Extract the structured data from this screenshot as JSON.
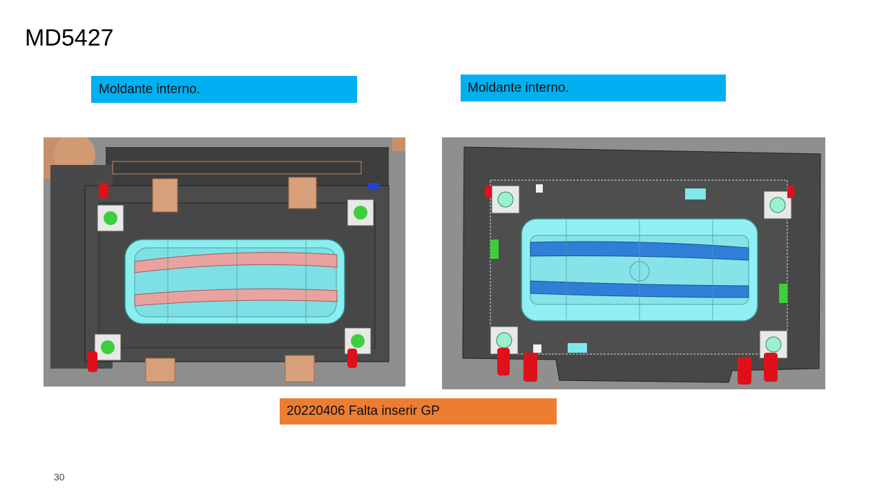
{
  "slide": {
    "title": "MD5427",
    "page_number": "30"
  },
  "labels": {
    "left": "Moldante interno.",
    "right": "Moldante interno.",
    "note": "20220406  Falta inserir GP"
  },
  "colors": {
    "label_blue": "#00b0f0",
    "note_orange": "#ed7d31",
    "mold_plate": "#4a4a4a",
    "cavity_cyan": "#7fe8ec",
    "insert_pink": "#e89a98",
    "insert_blue": "#2f7fd9",
    "pin_red": "#e0101a",
    "block_tan": "#d9a07a",
    "guide_green": "#3ccf3c"
  },
  "images": {
    "left": {
      "icon": "mold-cad-render-icon"
    },
    "right": {
      "icon": "mold-cad-render-icon"
    }
  }
}
